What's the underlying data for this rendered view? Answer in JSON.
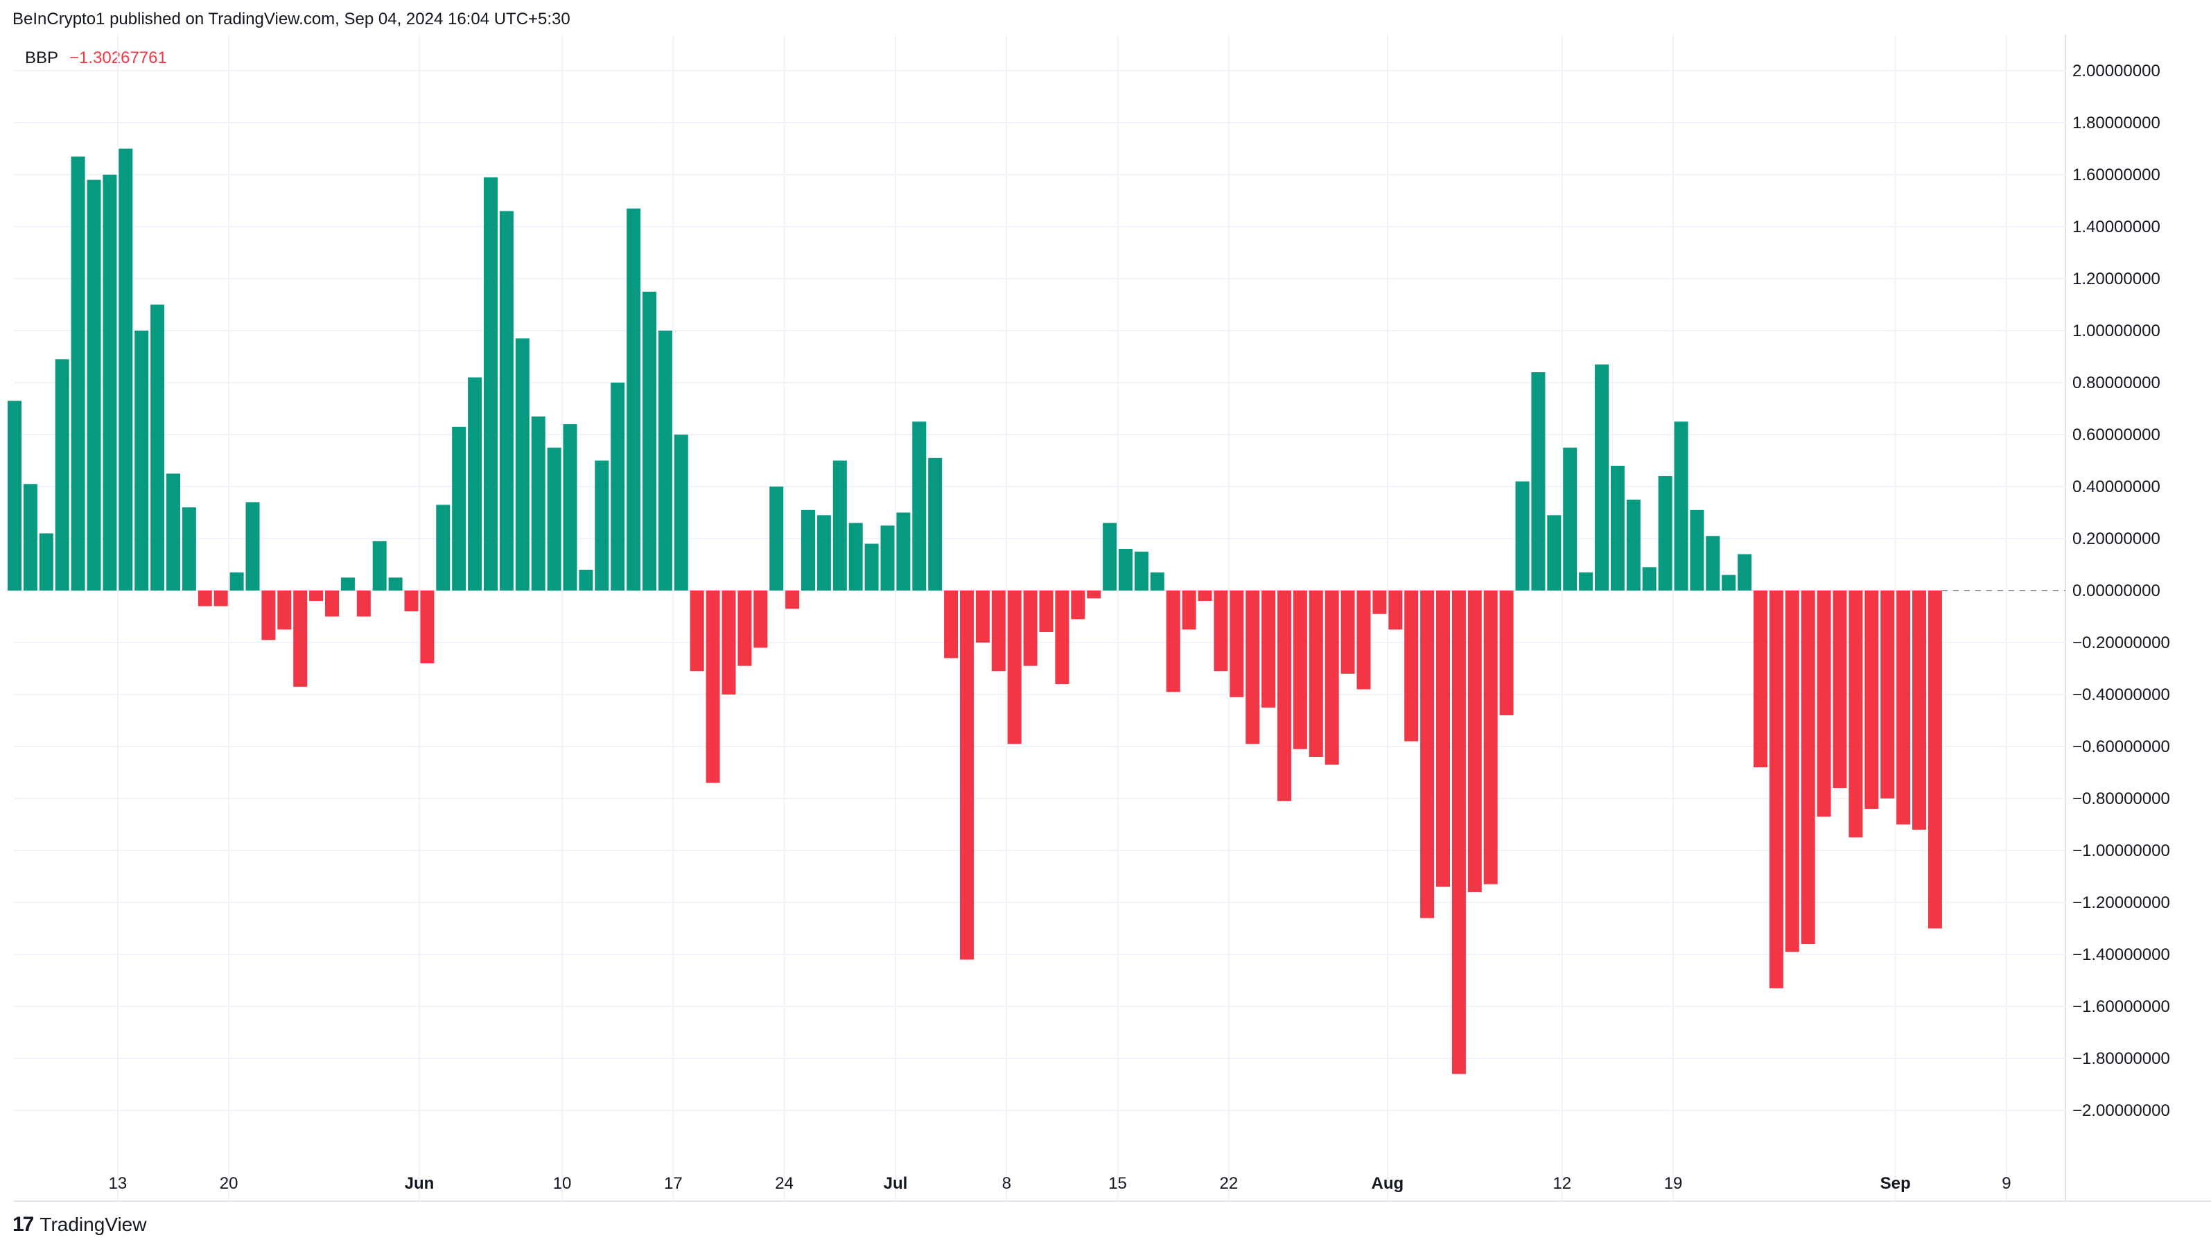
{
  "header": {
    "publisher_line": "BeInCrypto1 published on TradingView.com, Sep 04, 2024 16:04 UTC+5:30"
  },
  "indicator": {
    "name": "BBP",
    "value": "−1.30267761"
  },
  "branding": {
    "logo_mark": "17",
    "logo_text": "TradingView"
  },
  "colors": {
    "positive": "#089981",
    "negative": "#f23645",
    "grid": "#f0f3fa",
    "axis_text": "#131722",
    "zero_line": "#9598a1"
  },
  "chart_data": {
    "type": "bar",
    "title": "BBP",
    "xlabel": "",
    "ylabel": "",
    "ylim": [
      -2.2,
      2.2
    ],
    "y_ticks": [
      2.0,
      1.8,
      1.6,
      1.4,
      1.2,
      1.0,
      0.8,
      0.6,
      0.4,
      0.2,
      0.0,
      -0.2,
      -0.4,
      -0.6,
      -0.8,
      -1.0,
      -1.2,
      -1.4,
      -1.6,
      -1.8,
      -2.0
    ],
    "y_tick_labels": [
      "2.00000000",
      "1.80000000",
      "1.60000000",
      "1.40000000",
      "1.20000000",
      "1.00000000",
      "0.80000000",
      "0.60000000",
      "0.40000000",
      "0.20000000",
      "0.00000000",
      "−0.20000000",
      "−0.40000000",
      "−0.60000000",
      "−0.80000000",
      "−1.00000000",
      "−1.20000000",
      "−1.40000000",
      "−1.60000000",
      "−1.80000000",
      "−2.00000000"
    ],
    "x_ticks": [
      {
        "label": "13",
        "index": 6.5,
        "bold": false
      },
      {
        "label": "20",
        "index": 13.5,
        "bold": false
      },
      {
        "label": "Jun",
        "index": 25.5,
        "bold": true
      },
      {
        "label": "10",
        "index": 34.5,
        "bold": false
      },
      {
        "label": "17",
        "index": 41.5,
        "bold": false
      },
      {
        "label": "24",
        "index": 48.5,
        "bold": false
      },
      {
        "label": "Jul",
        "index": 55.5,
        "bold": true
      },
      {
        "label": "8",
        "index": 62.5,
        "bold": false
      },
      {
        "label": "15",
        "index": 69.5,
        "bold": false
      },
      {
        "label": "22",
        "index": 76.5,
        "bold": false
      },
      {
        "label": "Aug",
        "index": 86.5,
        "bold": true
      },
      {
        "label": "12",
        "index": 97.5,
        "bold": false
      },
      {
        "label": "19",
        "index": 104.5,
        "bold": false
      },
      {
        "label": "Sep",
        "index": 118.5,
        "bold": true
      },
      {
        "label": "9",
        "index": 125.5,
        "bold": false
      }
    ],
    "values": [
      0.73,
      0.41,
      0.22,
      0.89,
      1.67,
      1.58,
      1.6,
      1.7,
      1.0,
      1.1,
      0.45,
      0.32,
      -0.06,
      -0.06,
      0.07,
      0.34,
      -0.19,
      -0.15,
      -0.37,
      -0.04,
      -0.1,
      0.05,
      -0.1,
      0.19,
      0.05,
      -0.08,
      -0.28,
      0.33,
      0.63,
      0.82,
      1.59,
      1.46,
      0.97,
      0.67,
      0.55,
      0.64,
      0.08,
      0.5,
      0.8,
      1.47,
      1.15,
      1.0,
      0.6,
      -0.31,
      -0.74,
      -0.4,
      -0.29,
      -0.22,
      0.4,
      -0.07,
      0.31,
      0.29,
      0.5,
      0.26,
      0.18,
      0.25,
      0.3,
      0.65,
      0.51,
      -0.26,
      -1.42,
      -0.2,
      -0.31,
      -0.59,
      -0.29,
      -0.16,
      -0.36,
      -0.11,
      -0.03,
      0.26,
      0.16,
      0.15,
      0.07,
      -0.39,
      -0.15,
      -0.04,
      -0.31,
      -0.41,
      -0.59,
      -0.45,
      -0.81,
      -0.61,
      -0.64,
      -0.67,
      -0.32,
      -0.38,
      -0.09,
      -0.15,
      -0.58,
      -1.26,
      -1.14,
      -1.86,
      -1.16,
      -1.13,
      -0.48,
      0.42,
      0.84,
      0.29,
      0.55,
      0.07,
      0.87,
      0.48,
      0.35,
      0.09,
      0.44,
      0.65,
      0.31,
      0.21,
      0.06,
      0.14,
      -0.68,
      -1.53,
      -1.39,
      -1.36,
      -0.87,
      -0.76,
      -0.95,
      -0.84,
      -0.8,
      -0.9,
      -0.92,
      -1.3
    ]
  }
}
